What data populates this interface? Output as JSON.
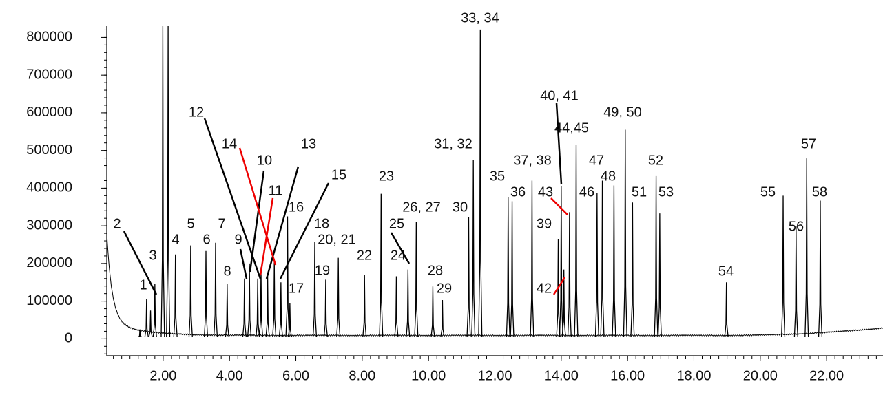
{
  "chart_data": {
    "type": "chromatogram",
    "color": "#000000",
    "x": [
      1.3,
      1.5,
      1.62,
      1.75,
      1.99,
      2.15,
      2.37,
      2.83,
      3.29,
      3.58,
      3.93,
      4.45,
      4.6,
      4.85,
      4.95,
      5.15,
      5.35,
      5.55,
      5.75,
      5.82,
      6.57,
      6.9,
      7.28,
      8.07,
      8.57,
      9.03,
      9.38,
      9.63,
      10.13,
      10.42,
      11.21,
      11.35,
      11.56,
      12.4,
      12.52,
      13.12,
      13.91,
      14.0,
      14.08,
      14.25,
      14.45,
      15.08,
      15.24,
      15.59,
      15.93,
      16.15,
      16.86,
      16.97,
      18.98,
      20.69,
      21.08,
      21.4,
      21.81
    ],
    "values": [
      25000,
      105000,
      75000,
      145000,
      830000,
      830000,
      224000,
      248000,
      233000,
      255000,
      145000,
      160000,
      200000,
      160000,
      190000,
      165000,
      210000,
      150000,
      325000,
      95000,
      257000,
      157000,
      215000,
      170000,
      385000,
      166000,
      184000,
      311000,
      139000,
      103000,
      324000,
      474000,
      821000,
      376000,
      365000,
      420000,
      264000,
      405000,
      184000,
      336000,
      514000,
      387000,
      420000,
      407000,
      555000,
      362000,
      432000,
      333000,
      150000,
      380000,
      300000,
      479000,
      367000
    ],
    "labels": [
      null,
      "1",
      "2",
      "3",
      null,
      null,
      "4",
      "5",
      "6",
      "7",
      "8",
      "9",
      "10",
      "12",
      "11",
      "13",
      "14",
      "15",
      "16",
      "17",
      "18",
      "19",
      "20, 21",
      "22",
      "23",
      "24",
      "25",
      "26, 27",
      "28",
      "29",
      "30",
      "31, 32",
      "33, 34",
      "35",
      "36",
      "37, 38",
      "39",
      "40, 41",
      "42",
      "43",
      "44,45",
      "46",
      "47",
      "48",
      "49, 50",
      "51",
      "52",
      "53",
      "54",
      "55",
      "56",
      "57",
      "58"
    ],
    "xlim": [
      0.3,
      23.7
    ],
    "ylim": [
      -45000,
      830000
    ],
    "xticks": [
      {
        "value": 2,
        "label": "2.00"
      },
      {
        "value": 4,
        "label": "4.00"
      },
      {
        "value": 6,
        "label": "6.00"
      },
      {
        "value": 8,
        "label": "8.00"
      },
      {
        "value": 10,
        "label": "10.00"
      },
      {
        "value": 12,
        "label": "12.00"
      },
      {
        "value": 14,
        "label": "14.00"
      },
      {
        "value": 16,
        "label": "16.00"
      },
      {
        "value": 18,
        "label": "18.00"
      },
      {
        "value": 20,
        "label": "20.00"
      },
      {
        "value": 22,
        "label": "22.00"
      }
    ],
    "yticks": [
      0,
      100000,
      200000,
      300000,
      400000,
      500000,
      600000,
      700000,
      800000
    ]
  }
}
